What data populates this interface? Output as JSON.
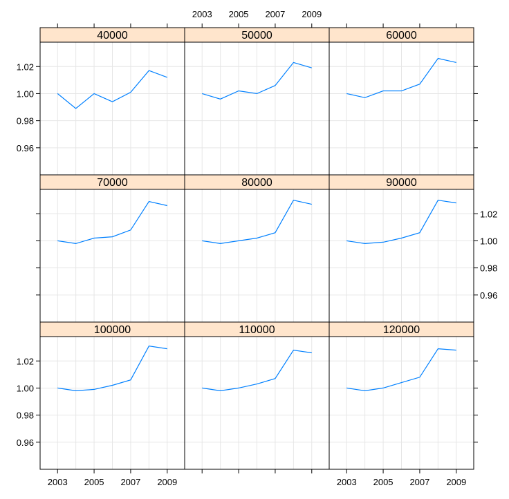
{
  "chart_data": {
    "type": "line",
    "layout": {
      "rows": 3,
      "cols": 3
    },
    "x_ticks": [
      2003,
      2005,
      2007,
      2009
    ],
    "y_ticks": [
      0.96,
      0.98,
      1.0,
      1.02
    ],
    "y_tick_labels": [
      "0.96",
      "0.98",
      "1.00",
      "1.02"
    ],
    "xlim": [
      2002.5,
      2009.5
    ],
    "ylim": [
      0.94,
      1.038
    ],
    "grid": true,
    "line_color": "#0080ff",
    "strip_color": "#ffe5cc",
    "x": [
      2003,
      2004,
      2005,
      2006,
      2007,
      2008,
      2009
    ],
    "panels": [
      {
        "label": "40000",
        "values": [
          1.0,
          0.989,
          1.0,
          0.994,
          1.001,
          1.017,
          1.012
        ]
      },
      {
        "label": "50000",
        "values": [
          1.0,
          0.996,
          1.002,
          1.0,
          1.006,
          1.023,
          1.019
        ]
      },
      {
        "label": "60000",
        "values": [
          1.0,
          0.997,
          1.002,
          1.002,
          1.007,
          1.026,
          1.023
        ]
      },
      {
        "label": "70000",
        "values": [
          1.0,
          0.998,
          1.002,
          1.003,
          1.008,
          1.029,
          1.026
        ]
      },
      {
        "label": "80000",
        "values": [
          1.0,
          0.998,
          1.0,
          1.002,
          1.006,
          1.03,
          1.027
        ]
      },
      {
        "label": "90000",
        "values": [
          1.0,
          0.998,
          0.999,
          1.002,
          1.006,
          1.03,
          1.028
        ]
      },
      {
        "label": "100000",
        "values": [
          1.0,
          0.998,
          0.999,
          1.002,
          1.006,
          1.031,
          1.029
        ]
      },
      {
        "label": "110000",
        "values": [
          1.0,
          0.998,
          1.0,
          1.003,
          1.007,
          1.028,
          1.026
        ]
      },
      {
        "label": "120000",
        "values": [
          1.0,
          0.998,
          1.0,
          1.004,
          1.008,
          1.029,
          1.028
        ]
      }
    ]
  }
}
